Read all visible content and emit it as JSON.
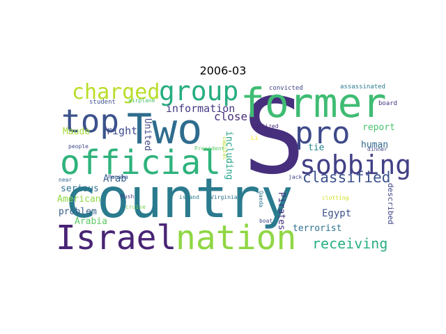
{
  "title": "2006-03",
  "words": [
    {
      "text": "country",
      "color": "#2a7b8e"
    },
    {
      "text": "S",
      "color": "#472f7d"
    },
    {
      "text": "Two",
      "color": "#2e6c8e"
    },
    {
      "text": "former",
      "color": "#3fbc73"
    },
    {
      "text": "official",
      "color": "#2eb37c"
    },
    {
      "text": "Israel",
      "color": "#482475"
    },
    {
      "text": "nation",
      "color": "#8fd744"
    },
    {
      "text": "top",
      "color": "#3b528b"
    },
    {
      "text": "pro",
      "color": "#3e4a89"
    },
    {
      "text": "sobbing",
      "color": "#424086"
    },
    {
      "text": "group",
      "color": "#27ad81"
    },
    {
      "text": "charged",
      "color": "#b8de29"
    },
    {
      "text": "classified",
      "color": "#3b528b"
    },
    {
      "text": "receiving",
      "color": "#28ae80"
    },
    {
      "text": "information",
      "color": "#443983"
    },
    {
      "text": "close",
      "color": "#472d7b"
    },
    {
      "text": "right",
      "color": "#3e4989"
    },
    {
      "text": "Maude",
      "color": "#a2da37"
    },
    {
      "text": "Arab",
      "color": "#355f8d"
    },
    {
      "text": "United",
      "color": "#3f4788"
    },
    {
      "text": "including",
      "color": "#1fa188"
    },
    {
      "text": "report",
      "color": "#48c16e"
    },
    {
      "text": "tie",
      "color": "#25858e"
    },
    {
      "text": "human",
      "color": "#31688e"
    },
    {
      "text": "serious",
      "color": "#2d708e"
    },
    {
      "text": "American",
      "color": "#8fd744"
    },
    {
      "text": "Arabia",
      "color": "#5ec962"
    },
    {
      "text": "problem",
      "color": "#355f8d"
    },
    {
      "text": "Pirates",
      "color": "#46337f"
    },
    {
      "text": "Egypt",
      "color": "#3b528b"
    },
    {
      "text": "described",
      "color": "#404588"
    },
    {
      "text": "terrorist",
      "color": "#2c728e"
    },
    {
      "text": "convicted",
      "color": "#414487"
    },
    {
      "text": "assassinated",
      "color": "#2a788e"
    },
    {
      "text": "board",
      "color": "#46327e"
    },
    {
      "text": "student",
      "color": "#3b528b"
    },
    {
      "text": "airplane",
      "color": "#44bf70"
    },
    {
      "text": "baptized",
      "color": "#482677"
    },
    {
      "text": "capital",
      "color": "#b5de2b"
    },
    {
      "text": "Li",
      "color": "#fde725"
    },
    {
      "text": "President",
      "color": "#5dc863"
    },
    {
      "text": "people",
      "color": "#3f4889"
    },
    {
      "text": "dinner",
      "color": "#404688"
    },
    {
      "text": "near",
      "color": "#31688e"
    },
    {
      "text": "Panama",
      "color": "#39568c"
    },
    {
      "text": "island",
      "color": "#27808e"
    },
    {
      "text": "Virginia",
      "color": "#2d708e"
    },
    {
      "text": "Qaeda",
      "color": "#2c728e"
    },
    {
      "text": "jack",
      "color": "#414487"
    },
    {
      "text": "clotting",
      "color": "#d0e11c"
    },
    {
      "text": "Rush",
      "color": "#433e85"
    },
    {
      "text": "cruise",
      "color": "#7ad151"
    },
    {
      "text": "boat",
      "color": "#3e4a89"
    }
  ]
}
